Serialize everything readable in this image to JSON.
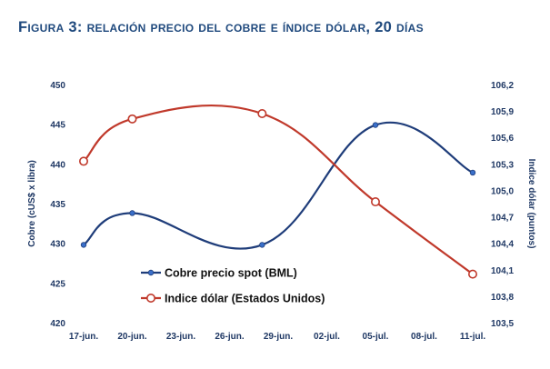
{
  "chart_data": {
    "type": "line",
    "title": "Figura 3: relación precio del cobre e índice dólar, 20 días",
    "categories": [
      "17-jun.",
      "20-jun.",
      "23-jun.",
      "26-jun.",
      "29-jun.",
      "02-jul.",
      "05-jul.",
      "08-jul.",
      "11-jul."
    ],
    "ylabel": "Cobre (cUS$ x libra)",
    "y2label": "Indice dólar (puntos)",
    "ylim": [
      420,
      450
    ],
    "yticks": [
      "420",
      "425",
      "430",
      "435",
      "440",
      "445",
      "450"
    ],
    "y2lim": [
      103.5,
      106.2
    ],
    "y2ticks": [
      "103,5",
      "103,8",
      "104,1",
      "104,4",
      "104,7",
      "105,0",
      "105,3",
      "105,6",
      "105,9",
      "106,2"
    ],
    "legend_position": "bottom-left inside",
    "series": [
      {
        "name": "Cobre precio spot (BML)",
        "axis": "left",
        "color": "#1f3d7a",
        "marker": "filled-circle",
        "points": [
          {
            "x": "17-jun.",
            "y": 429.8
          },
          {
            "x": "20-jun.",
            "y": 433.8
          },
          {
            "x": "28-jun.",
            "y": 429.8
          },
          {
            "x": "05-jul.",
            "y": 444.9
          },
          {
            "x": "11-jul.",
            "y": 438.9
          }
        ]
      },
      {
        "name": "Indice dólar (Estados Unidos)",
        "axis": "right",
        "color": "#c0392b",
        "marker": "open-circle",
        "points": [
          {
            "x": "17-jun.",
            "y": 105.33
          },
          {
            "x": "20-jun.",
            "y": 105.81
          },
          {
            "x": "28-jun.",
            "y": 105.87
          },
          {
            "x": "05-jul.",
            "y": 104.87
          },
          {
            "x": "11-jul.",
            "y": 104.05
          }
        ]
      }
    ]
  }
}
